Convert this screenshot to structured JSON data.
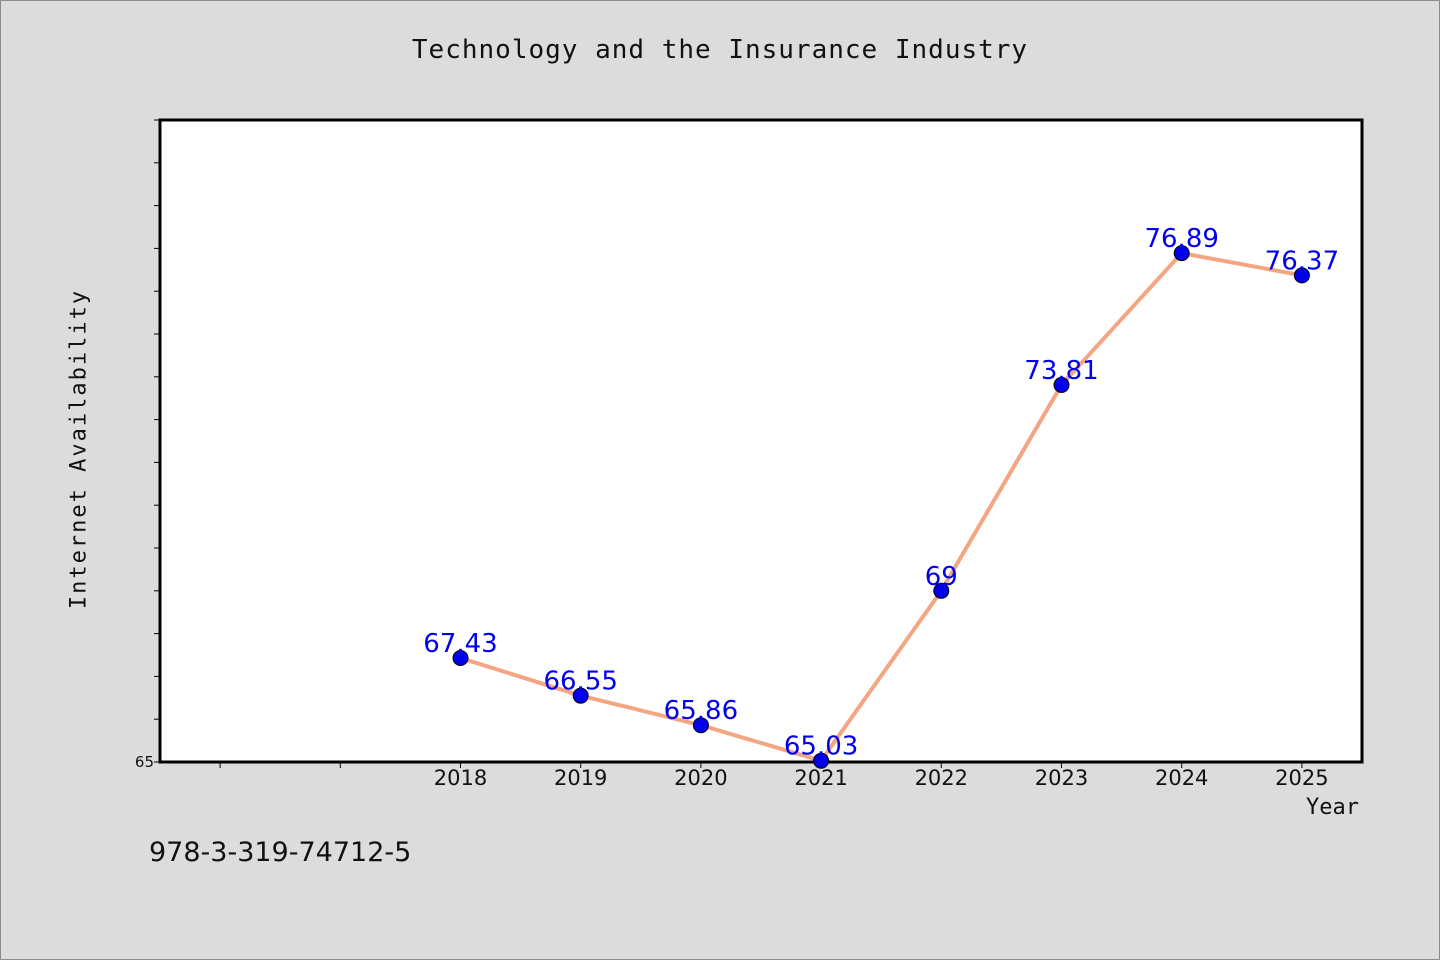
{
  "footer": {
    "code": "978-3-319-74712-5"
  },
  "chart_data": {
    "type": "line",
    "title": "Technology and the Insurance Industry",
    "xlabel": "Year",
    "ylabel": "Internet Availability",
    "x": [
      "2018",
      "2019",
      "2020",
      "2021",
      "2022",
      "2023",
      "2024",
      "2025"
    ],
    "series": [
      {
        "values": [
          67.43,
          66.55,
          65.86,
          65.03,
          69,
          73.81,
          76.89,
          76.37
        ],
        "line_color": "#f4a582",
        "marker_color": "#0000ee"
      }
    ],
    "data_labels": [
      "67.43",
      "66.55",
      "65.86",
      "65.03",
      "69",
      "73.81",
      "76.89",
      "76.37"
    ],
    "y_tick_labels": [
      "65"
    ],
    "ylim": [
      65,
      80
    ],
    "grid": false,
    "legend": "none",
    "colors": {
      "background": "#dcdcdc",
      "plot_bg": "#ffffff",
      "label": "#0000ee"
    }
  }
}
